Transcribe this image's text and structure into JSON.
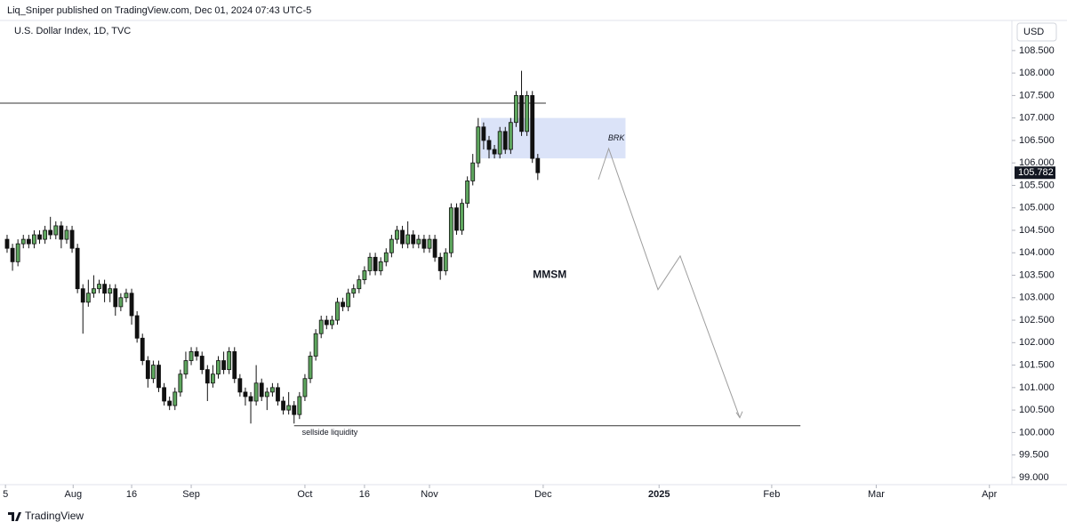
{
  "header": {
    "publisher": "Liq_Sniper published on TradingView.com, Dec 01, 2024 07:43 UTC-5",
    "symbol": "U.S. Dollar Index, 1D, TVC",
    "currency": "USD",
    "footer": "TradingView"
  },
  "chart_data": {
    "type": "candlestick",
    "up_color": "#5ea65e",
    "down_color": "#111111",
    "open": [
      104.3,
      104.1,
      103.8,
      104.2,
      104.3,
      104.2,
      104.4,
      104.3,
      104.5,
      104.4,
      104.6,
      104.3,
      104.5,
      104.1,
      103.2,
      102.9,
      103.1,
      103.2,
      103.3,
      103.1,
      103.2,
      102.8,
      103.0,
      103.1,
      102.6,
      102.1,
      101.6,
      101.2,
      101.5,
      101.0,
      100.7,
      100.6,
      100.9,
      101.3,
      101.6,
      101.8,
      101.7,
      101.4,
      101.1,
      101.3,
      101.6,
      101.4,
      101.8,
      101.2,
      100.9,
      100.8,
      100.7,
      101.1,
      100.8,
      100.9,
      101.0,
      100.7,
      100.5,
      100.6,
      100.4,
      100.8,
      101.2,
      101.7,
      102.2,
      102.5,
      102.4,
      102.5,
      102.9,
      102.8,
      103.1,
      103.2,
      103.4,
      103.6,
      103.9,
      103.6,
      103.8,
      104.0,
      104.3,
      104.5,
      104.2,
      104.4,
      104.2,
      104.3,
      104.1,
      104.3,
      103.9,
      103.6,
      104.0,
      105.0,
      104.5,
      105.1,
      105.6,
      106.0,
      106.8,
      106.5,
      106.3,
      106.2,
      106.7,
      106.3,
      106.9,
      107.5,
      106.7,
      107.5,
      106.1
    ],
    "high": [
      104.4,
      104.2,
      104.3,
      104.4,
      104.4,
      104.5,
      104.5,
      104.6,
      104.8,
      104.7,
      104.7,
      104.6,
      104.6,
      104.2,
      103.3,
      103.4,
      103.5,
      103.4,
      103.4,
      103.3,
      103.3,
      103.1,
      103.2,
      103.2,
      102.7,
      102.2,
      101.7,
      101.6,
      101.6,
      101.1,
      100.8,
      101.0,
      101.4,
      101.8,
      101.9,
      101.9,
      101.8,
      101.5,
      101.5,
      101.7,
      101.8,
      101.9,
      101.9,
      101.3,
      101.0,
      100.9,
      101.5,
      101.2,
      101.0,
      101.1,
      101.1,
      100.8,
      100.9,
      100.7,
      100.9,
      101.3,
      101.8,
      102.3,
      102.6,
      102.6,
      102.6,
      103.0,
      103.0,
      103.2,
      103.3,
      103.5,
      103.7,
      104.0,
      104.0,
      103.9,
      104.1,
      104.4,
      104.6,
      104.6,
      104.7,
      104.5,
      104.4,
      104.4,
      104.4,
      104.4,
      104.0,
      104.1,
      105.1,
      105.1,
      105.2,
      105.7,
      106.2,
      107.0,
      106.9,
      106.6,
      106.4,
      106.8,
      106.8,
      107.0,
      107.6,
      108.05,
      107.6,
      107.6,
      106.2
    ],
    "low": [
      104.0,
      103.6,
      103.7,
      104.1,
      104.1,
      104.1,
      104.2,
      104.2,
      104.3,
      104.3,
      104.1,
      104.2,
      104.0,
      103.1,
      102.2,
      102.8,
      103.0,
      103.1,
      102.9,
      102.9,
      102.6,
      102.7,
      102.9,
      102.4,
      102.0,
      101.5,
      101.0,
      101.1,
      100.9,
      100.6,
      100.5,
      100.5,
      100.8,
      101.2,
      101.5,
      101.6,
      101.3,
      100.7,
      101.0,
      101.2,
      101.3,
      101.3,
      101.1,
      100.8,
      100.6,
      100.2,
      100.6,
      100.7,
      100.5,
      100.8,
      100.6,
      100.4,
      100.4,
      100.2,
      100.3,
      100.7,
      101.1,
      101.6,
      102.1,
      102.3,
      102.3,
      102.4,
      102.7,
      102.7,
      103.0,
      103.1,
      103.3,
      103.5,
      103.5,
      103.5,
      103.7,
      103.9,
      104.2,
      104.1,
      104.1,
      104.1,
      104.1,
      104.0,
      104.0,
      103.8,
      103.4,
      103.5,
      103.9,
      104.4,
      104.4,
      105.0,
      105.5,
      105.9,
      106.3,
      106.1,
      106.1,
      106.1,
      106.2,
      106.2,
      106.8,
      106.6,
      106.6,
      106.0,
      105.62
    ],
    "close": [
      104.1,
      103.8,
      104.2,
      104.3,
      104.2,
      104.4,
      104.3,
      104.5,
      104.4,
      104.6,
      104.3,
      104.5,
      104.1,
      103.2,
      102.9,
      103.1,
      103.2,
      103.3,
      103.1,
      103.2,
      102.8,
      103.0,
      103.1,
      102.6,
      102.1,
      101.6,
      101.2,
      101.5,
      101.0,
      100.7,
      100.6,
      100.9,
      101.3,
      101.6,
      101.8,
      101.7,
      101.4,
      101.1,
      101.3,
      101.6,
      101.4,
      101.8,
      101.2,
      100.9,
      100.8,
      100.7,
      101.1,
      100.8,
      100.9,
      101.0,
      100.7,
      100.5,
      100.6,
      100.4,
      100.8,
      101.2,
      101.7,
      102.2,
      102.5,
      102.4,
      102.5,
      102.9,
      102.8,
      103.1,
      103.2,
      103.4,
      103.6,
      103.9,
      103.6,
      103.8,
      104.0,
      104.3,
      104.5,
      104.2,
      104.4,
      104.2,
      104.3,
      104.1,
      104.3,
      103.9,
      103.6,
      104.0,
      105.0,
      104.5,
      105.1,
      105.6,
      106.0,
      106.8,
      106.5,
      106.3,
      106.2,
      106.7,
      106.3,
      106.9,
      107.5,
      106.7,
      107.5,
      106.1,
      105.782
    ],
    "xlim": [
      -1.31,
      185.55
    ],
    "xticks": [
      {
        "value": -0.3,
        "label": "5"
      },
      {
        "value": 12.2,
        "label": "Aug"
      },
      {
        "value": 23,
        "label": "16"
      },
      {
        "value": 34,
        "label": "Sep"
      },
      {
        "value": 55,
        "label": "Oct"
      },
      {
        "value": 66,
        "label": "16"
      },
      {
        "value": 78,
        "label": "Nov"
      },
      {
        "value": 99,
        "label": "Dec"
      },
      {
        "value": 120.4,
        "label": "2025"
      },
      {
        "value": 141.2,
        "label": "Feb"
      },
      {
        "value": 160.5,
        "label": "Mar"
      },
      {
        "value": 181.4,
        "label": "Apr"
      }
    ],
    "ylim": [
      98.84,
      109.19
    ],
    "yticks": [
      {
        "value": 99,
        "label": "99.000"
      },
      {
        "value": 99.5,
        "label": "99.500"
      },
      {
        "value": 100,
        "label": "100.000"
      },
      {
        "value": 100.5,
        "label": "100.500"
      },
      {
        "value": 101,
        "label": "101.000"
      },
      {
        "value": 101.5,
        "label": "101.500"
      },
      {
        "value": 102,
        "label": "102.000"
      },
      {
        "value": 102.5,
        "label": "102.500"
      },
      {
        "value": 103,
        "label": "103.000"
      },
      {
        "value": 103.5,
        "label": "103.500"
      },
      {
        "value": 104,
        "label": "104.000"
      },
      {
        "value": 104.5,
        "label": "104.500"
      },
      {
        "value": 105,
        "label": "105.000"
      },
      {
        "value": 105.5,
        "label": "105.500"
      },
      {
        "value": 106,
        "label": "106.000"
      },
      {
        "value": 106.5,
        "label": "106.500"
      },
      {
        "value": 107,
        "label": "107.000"
      },
      {
        "value": 107.5,
        "label": "107.500"
      },
      {
        "value": 108,
        "label": "108.000"
      },
      {
        "value": 108.5,
        "label": "108.500"
      }
    ],
    "levels": [
      {
        "y": 107.33,
        "x": [
          -1.31,
          99.5
        ]
      },
      {
        "y": 100.15,
        "x": [
          53,
          146.5
        ]
      }
    ],
    "zone": {
      "y": [
        106.1,
        107.0
      ],
      "x": [
        87.5,
        114.2
      ],
      "color": "#dbe3f8"
    },
    "projection": {
      "x": [
        109.2,
        111.1,
        120.2,
        124.3,
        135.3
      ],
      "y": [
        105.63,
        106.32,
        103.18,
        103.93,
        100.33
      ]
    },
    "notes": [
      {
        "text": "BRK",
        "x": 112.5,
        "y": 106.55
      },
      {
        "text": "MMSM",
        "x": 100.2,
        "y": 103.5
      },
      {
        "text": "sellside liquidity",
        "x": 59.6,
        "y": 100.0
      }
    ]
  }
}
